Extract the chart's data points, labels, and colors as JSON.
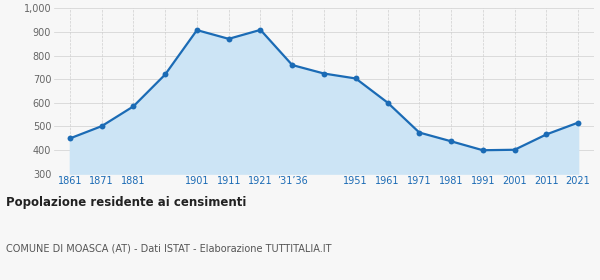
{
  "x_positions": [
    0,
    1,
    2,
    3,
    4,
    5,
    6,
    7,
    8,
    9,
    10,
    11,
    12,
    13,
    14,
    15,
    16
  ],
  "values": [
    449,
    501,
    585,
    720,
    908,
    871,
    909,
    760,
    724,
    703,
    601,
    474,
    437,
    399,
    401,
    466,
    516
  ],
  "tick_labels": [
    "1861",
    "1871",
    "1881",
    "",
    "1901",
    "1911",
    "1921",
    "’31’36",
    "",
    "1951",
    "1961",
    "1971",
    "1981",
    "1991",
    "2001",
    "2011",
    "2021"
  ],
  "line_color": "#1b6bb5",
  "fill_color": "#cce4f5",
  "marker_color": "#1b6bb5",
  "background_color": "#f7f7f7",
  "grid_color": "#d0d0d0",
  "ylim_min": 300,
  "ylim_max": 1000,
  "ytick_values": [
    300,
    400,
    500,
    600,
    700,
    800,
    900,
    1000
  ],
  "ytick_labels": [
    "300",
    "400",
    "500",
    "600",
    "700",
    "800",
    "900",
    "1,000"
  ],
  "title": "Popolazione residente ai censimenti",
  "subtitle": "COMUNE DI MOASCA (AT) - Dati ISTAT - Elaborazione TUTTITALIA.IT",
  "title_color": "#222222",
  "subtitle_color": "#555555",
  "xtick_color": "#1b6bb5",
  "ytick_color": "#666666",
  "marker_size": 18,
  "line_width": 1.6
}
